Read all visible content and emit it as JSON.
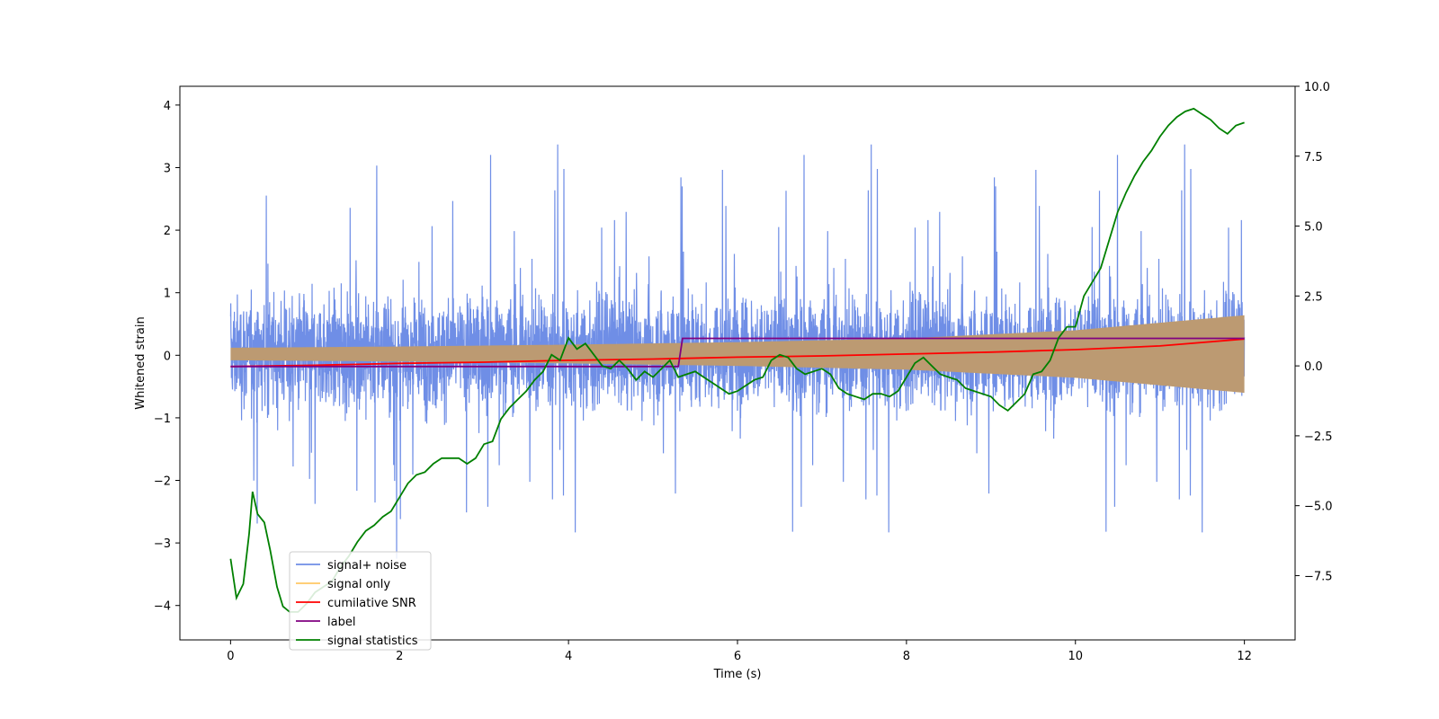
{
  "chart_data": {
    "type": "line",
    "xlabel": "Time (s)",
    "ylabel": "Whitened strain",
    "xlim": [
      -0.6,
      12.6
    ],
    "ylim_left": [
      -4.55,
      4.3
    ],
    "ylim_right": [
      -9.8,
      10.0
    ],
    "x_ticks": [
      0,
      2,
      4,
      6,
      8,
      10,
      12
    ],
    "y_ticks_left": [
      -4,
      -3,
      -2,
      -1,
      0,
      1,
      2,
      3,
      4
    ],
    "y_ticks_right": [
      -7.5,
      -5.0,
      -2.5,
      0.0,
      2.5,
      5.0,
      7.5,
      10.0
    ],
    "y_tick_labels_right": [
      "−7.5",
      "−5.0",
      "−2.5",
      "0.0",
      "2.5",
      "5.0",
      "7.5",
      "10.0"
    ],
    "y_tick_labels_left": [
      "−4",
      "−3",
      "−2",
      "−1",
      "0",
      "1",
      "2",
      "3",
      "4"
    ],
    "grid": false,
    "legend_position": "lower-left",
    "colors": {
      "noise": "#6f8ee6",
      "signal": "#ffc864",
      "snr": "#ff0000",
      "label": "#800080",
      "stats": "#008000",
      "overlap": "#bc9a72"
    },
    "series": [
      {
        "name": "signal+ noise",
        "axis": "left",
        "sample_rate": 400,
        "x_range": [
          0,
          12
        ],
        "typical_band": [
          -1.4,
          1.5
        ],
        "peak_range": [
          -4.15,
          3.9
        ]
      },
      {
        "name": "signal only",
        "axis": "left",
        "envelope_x": [
          0,
          2,
          4,
          6,
          8,
          10,
          12
        ],
        "envelope_amplitude": [
          0.1,
          0.12,
          0.15,
          0.19,
          0.25,
          0.38,
          0.62
        ]
      },
      {
        "name": "cumilative SNR",
        "axis": "left",
        "x": [
          0,
          1,
          2,
          3,
          4,
          5,
          6,
          7,
          8,
          9,
          10,
          11,
          12
        ],
        "y": [
          -0.18,
          -0.16,
          -0.13,
          -0.11,
          -0.08,
          -0.06,
          -0.03,
          -0.01,
          0.02,
          0.05,
          0.09,
          0.15,
          0.26
        ]
      },
      {
        "name": "label",
        "axis": "left",
        "x": [
          0,
          5.3,
          5.35,
          12
        ],
        "y": [
          -0.18,
          -0.18,
          0.27,
          0.27
        ]
      },
      {
        "name": "signal statistics",
        "axis": "right",
        "x": [
          0,
          0.07,
          0.15,
          0.22,
          0.26,
          0.32,
          0.4,
          0.47,
          0.55,
          0.62,
          0.7,
          0.8,
          0.9,
          1.0,
          1.1,
          1.2,
          1.3,
          1.4,
          1.5,
          1.6,
          1.7,
          1.8,
          1.9,
          2.0,
          2.1,
          2.2,
          2.3,
          2.4,
          2.5,
          2.6,
          2.7,
          2.8,
          2.9,
          3.0,
          3.1,
          3.2,
          3.3,
          3.4,
          3.5,
          3.6,
          3.7,
          3.8,
          3.9,
          4.0,
          4.1,
          4.2,
          4.3,
          4.4,
          4.5,
          4.6,
          4.7,
          4.8,
          4.9,
          5.0,
          5.1,
          5.2,
          5.3,
          5.4,
          5.5,
          5.6,
          5.7,
          5.8,
          5.9,
          6.0,
          6.1,
          6.2,
          6.3,
          6.4,
          6.5,
          6.6,
          6.7,
          6.8,
          6.9,
          7.0,
          7.1,
          7.2,
          7.3,
          7.4,
          7.5,
          7.6,
          7.7,
          7.8,
          7.9,
          8.0,
          8.1,
          8.2,
          8.3,
          8.4,
          8.5,
          8.6,
          8.7,
          8.8,
          8.9,
          9.0,
          9.1,
          9.2,
          9.3,
          9.4,
          9.5,
          9.6,
          9.7,
          9.8,
          9.9,
          10.0,
          10.1,
          10.2,
          10.3,
          10.4,
          10.5,
          10.6,
          10.7,
          10.8,
          10.9,
          11.0,
          11.1,
          11.2,
          11.3,
          11.4,
          11.5,
          11.6,
          11.7,
          11.8,
          11.9,
          12.0
        ],
        "y": [
          -6.9,
          -8.3,
          -7.8,
          -6.0,
          -4.5,
          -5.3,
          -5.6,
          -6.6,
          -7.9,
          -8.6,
          -8.8,
          -8.8,
          -8.5,
          -8.1,
          -7.9,
          -7.7,
          -7.2,
          -6.8,
          -6.3,
          -5.9,
          -5.7,
          -5.4,
          -5.2,
          -4.7,
          -4.2,
          -3.9,
          -3.8,
          -3.5,
          -3.3,
          -3.3,
          -3.3,
          -3.5,
          -3.3,
          -2.8,
          -2.7,
          -1.9,
          -1.5,
          -1.2,
          -0.9,
          -0.5,
          -0.2,
          0.4,
          0.2,
          1.0,
          0.6,
          0.8,
          0.4,
          0.0,
          -0.1,
          0.2,
          -0.1,
          -0.5,
          -0.2,
          -0.4,
          -0.1,
          0.2,
          -0.4,
          -0.3,
          -0.2,
          -0.4,
          -0.6,
          -0.8,
          -1.0,
          -0.9,
          -0.7,
          -0.5,
          -0.4,
          0.2,
          0.4,
          0.3,
          -0.1,
          -0.3,
          -0.2,
          -0.1,
          -0.3,
          -0.8,
          -1.0,
          -1.1,
          -1.2,
          -1.0,
          -1.0,
          -1.1,
          -0.9,
          -0.4,
          0.1,
          0.3,
          0.0,
          -0.3,
          -0.4,
          -0.5,
          -0.8,
          -0.9,
          -1.0,
          -1.1,
          -1.4,
          -1.6,
          -1.3,
          -1.0,
          -0.3,
          -0.2,
          0.2,
          1.0,
          1.4,
          1.4,
          2.5,
          3.0,
          3.5,
          4.5,
          5.5,
          6.2,
          6.8,
          7.3,
          7.7,
          8.2,
          8.6,
          8.9,
          9.1,
          9.2,
          9.0,
          8.8,
          8.5,
          8.3,
          8.6,
          8.7
        ]
      }
    ],
    "legend": [
      "signal+ noise",
      "signal only",
      "cumilative SNR",
      "label",
      "signal statistics"
    ]
  }
}
